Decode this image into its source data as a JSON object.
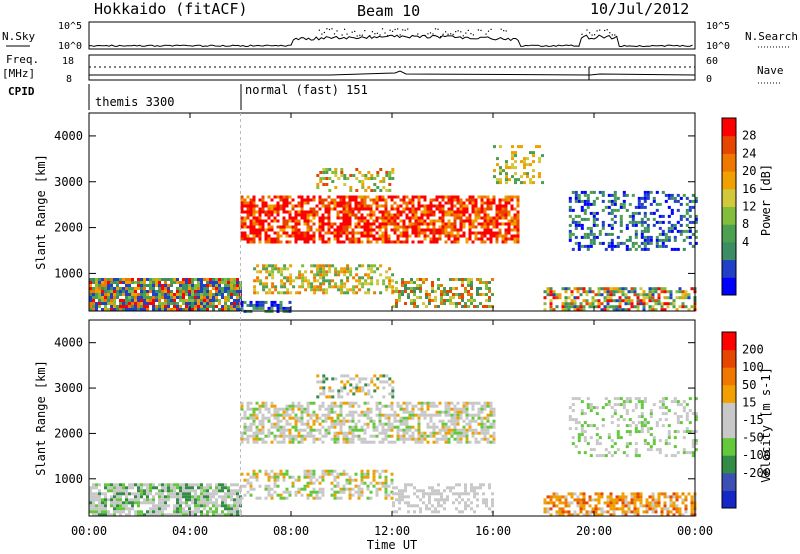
{
  "header": {
    "station": "Hokkaido (fitACF)",
    "beam": "Beam 10",
    "date": "10/Jul/2012"
  },
  "strip": {
    "nsky_label": "N.Sky",
    "nsearch_label": "N.Search",
    "left_ticks": [
      "10^5",
      "10^0"
    ],
    "right_ticks": [
      "10^5",
      "10^0"
    ],
    "freq_label_1": "Freq.",
    "freq_label_2": "[MHz]",
    "freq_ticks": [
      "18",
      "8"
    ],
    "nave_label": "Nave",
    "nave_ticks": [
      "60",
      "0"
    ],
    "cpid_label": "CPID",
    "cpid_modes": [
      {
        "name": "themis 3300",
        "start_ut": 0
      },
      {
        "name": "normal (fast) 151",
        "start_ut": 6
      }
    ]
  },
  "chart_data": [
    {
      "type": "heatmap",
      "name": "power",
      "ylabel": "Slant Range [km]",
      "ylim": [
        180,
        4500
      ],
      "yticks": [
        "1000",
        "2000",
        "3000",
        "4000"
      ],
      "xlim": [
        0,
        24
      ],
      "colorbar_label": "Power [dB]",
      "colorbar_ticks": [
        "28",
        "24",
        "20",
        "16",
        "12",
        "8",
        "4"
      ],
      "colors": [
        "#0000ff",
        "#2040c8",
        "#3c8c64",
        "#4ca050",
        "#82be3c",
        "#d2c83c",
        "#f0a000",
        "#f07800",
        "#e64600",
        "#ff0000"
      ]
    },
    {
      "type": "heatmap",
      "name": "velocity",
      "ylabel": "Slant Range [km]",
      "ylim": [
        180,
        4500
      ],
      "yticks": [
        "1000",
        "2000",
        "3000",
        "4000"
      ],
      "xlim": [
        0,
        24
      ],
      "xticks": [
        "00:00",
        "04:00",
        "08:00",
        "12:00",
        "16:00",
        "20:00",
        "00:00"
      ],
      "xlabel": "Time UT",
      "colorbar_label": "Velocity [m s-1]",
      "colorbar_ticks": [
        "200",
        "100",
        "50",
        "15",
        "-15",
        "-50",
        "-100",
        "-200"
      ],
      "colors": [
        "#1428c8",
        "#3c50b4",
        "#328c46",
        "#64c83c",
        "#c8c8c8",
        "#c8c8c8",
        "#f0a000",
        "#f07800",
        "#e64600",
        "#ff0000"
      ]
    }
  ]
}
